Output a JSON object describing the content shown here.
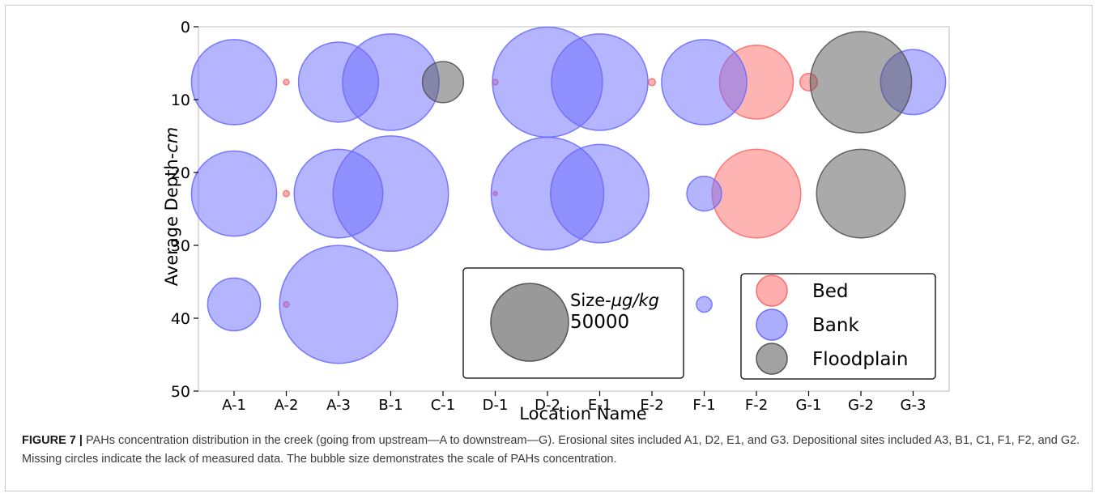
{
  "colors": {
    "Bed": "#ff6a6a",
    "Bank": "#6b6bff",
    "Floodplain": "#555555"
  },
  "chart_data": {
    "type": "scatter",
    "subtype": "bubble",
    "xlabel": "Location Name",
    "ylabel_prefix": "Average Depth-",
    "ylabel_unit": "cm",
    "ylim": [
      0,
      50
    ],
    "y_inverted": true,
    "yticks": [
      "0",
      "10",
      "20",
      "30",
      "40",
      "50"
    ],
    "categories": [
      "A-1",
      "A-2",
      "A-3",
      "B-1",
      "C-1",
      "D-1",
      "D-2",
      "E-1",
      "E-2",
      "F-1",
      "F-2",
      "G-1",
      "G-2",
      "G-3"
    ],
    "size_unit": "µg/kg",
    "series": [
      {
        "name": "Bed",
        "points": [
          {
            "x": "A-2",
            "y": 7.6,
            "size": 250
          },
          {
            "x": "D-1",
            "y": 7.6,
            "size": 250
          },
          {
            "x": "E-2",
            "y": 7.6,
            "size": 400
          },
          {
            "x": "F-2",
            "y": 7.6,
            "size": 45000
          },
          {
            "x": "G-1",
            "y": 7.6,
            "size": 2500
          },
          {
            "x": "A-2",
            "y": 22.9,
            "size": 300
          },
          {
            "x": "D-1",
            "y": 22.9,
            "size": 100
          },
          {
            "x": "F-2",
            "y": 22.9,
            "size": 65000
          },
          {
            "x": "A-2",
            "y": 38.1,
            "size": 250
          }
        ]
      },
      {
        "name": "Bank",
        "points": [
          {
            "x": "A-1",
            "y": 7.6,
            "size": 60000
          },
          {
            "x": "A-3",
            "y": 7.6,
            "size": 53000
          },
          {
            "x": "B-1",
            "y": 7.6,
            "size": 77000
          },
          {
            "x": "D-2",
            "y": 7.6,
            "size": 100000
          },
          {
            "x": "E-1",
            "y": 7.6,
            "size": 77000
          },
          {
            "x": "F-1",
            "y": 7.6,
            "size": 60000
          },
          {
            "x": "G-3",
            "y": 7.6,
            "size": 35000
          },
          {
            "x": "A-1",
            "y": 22.9,
            "size": 60000
          },
          {
            "x": "A-3",
            "y": 22.9,
            "size": 65000
          },
          {
            "x": "B-1",
            "y": 22.9,
            "size": 110000
          },
          {
            "x": "D-2",
            "y": 22.9,
            "size": 105000
          },
          {
            "x": "E-1",
            "y": 22.9,
            "size": 80000
          },
          {
            "x": "F-1",
            "y": 22.9,
            "size": 10000
          },
          {
            "x": "A-1",
            "y": 38.1,
            "size": 23000
          },
          {
            "x": "A-3",
            "y": 38.1,
            "size": 115000
          },
          {
            "x": "F-1",
            "y": 38.1,
            "size": 2000
          }
        ]
      },
      {
        "name": "Floodplain",
        "points": [
          {
            "x": "C-1",
            "y": 7.6,
            "size": 14000
          },
          {
            "x": "G-2",
            "y": 7.6,
            "size": 85000
          },
          {
            "x": "G-2",
            "y": 22.9,
            "size": 65000
          }
        ]
      }
    ],
    "size_legend": {
      "label_prefix": "Size-",
      "label_unit": "µg/kg",
      "value": "50000",
      "ref_size": 50000
    },
    "legend": {
      "placement": "lower-right",
      "entries": [
        "Bed",
        "Bank",
        "Floodplain"
      ]
    },
    "grid": false
  },
  "caption": {
    "label": "FIGURE 7 |",
    "text": " PAHs concentration distribution in the creek (going from upstream—A to downstream—G). Erosional sites included A1, D2, E1, and G3. Depositional sites included A3, B1, C1, F1, F2, and G2. Missing circles indicate the lack of measured data. The bubble size demonstrates the scale of PAHs concentration."
  }
}
